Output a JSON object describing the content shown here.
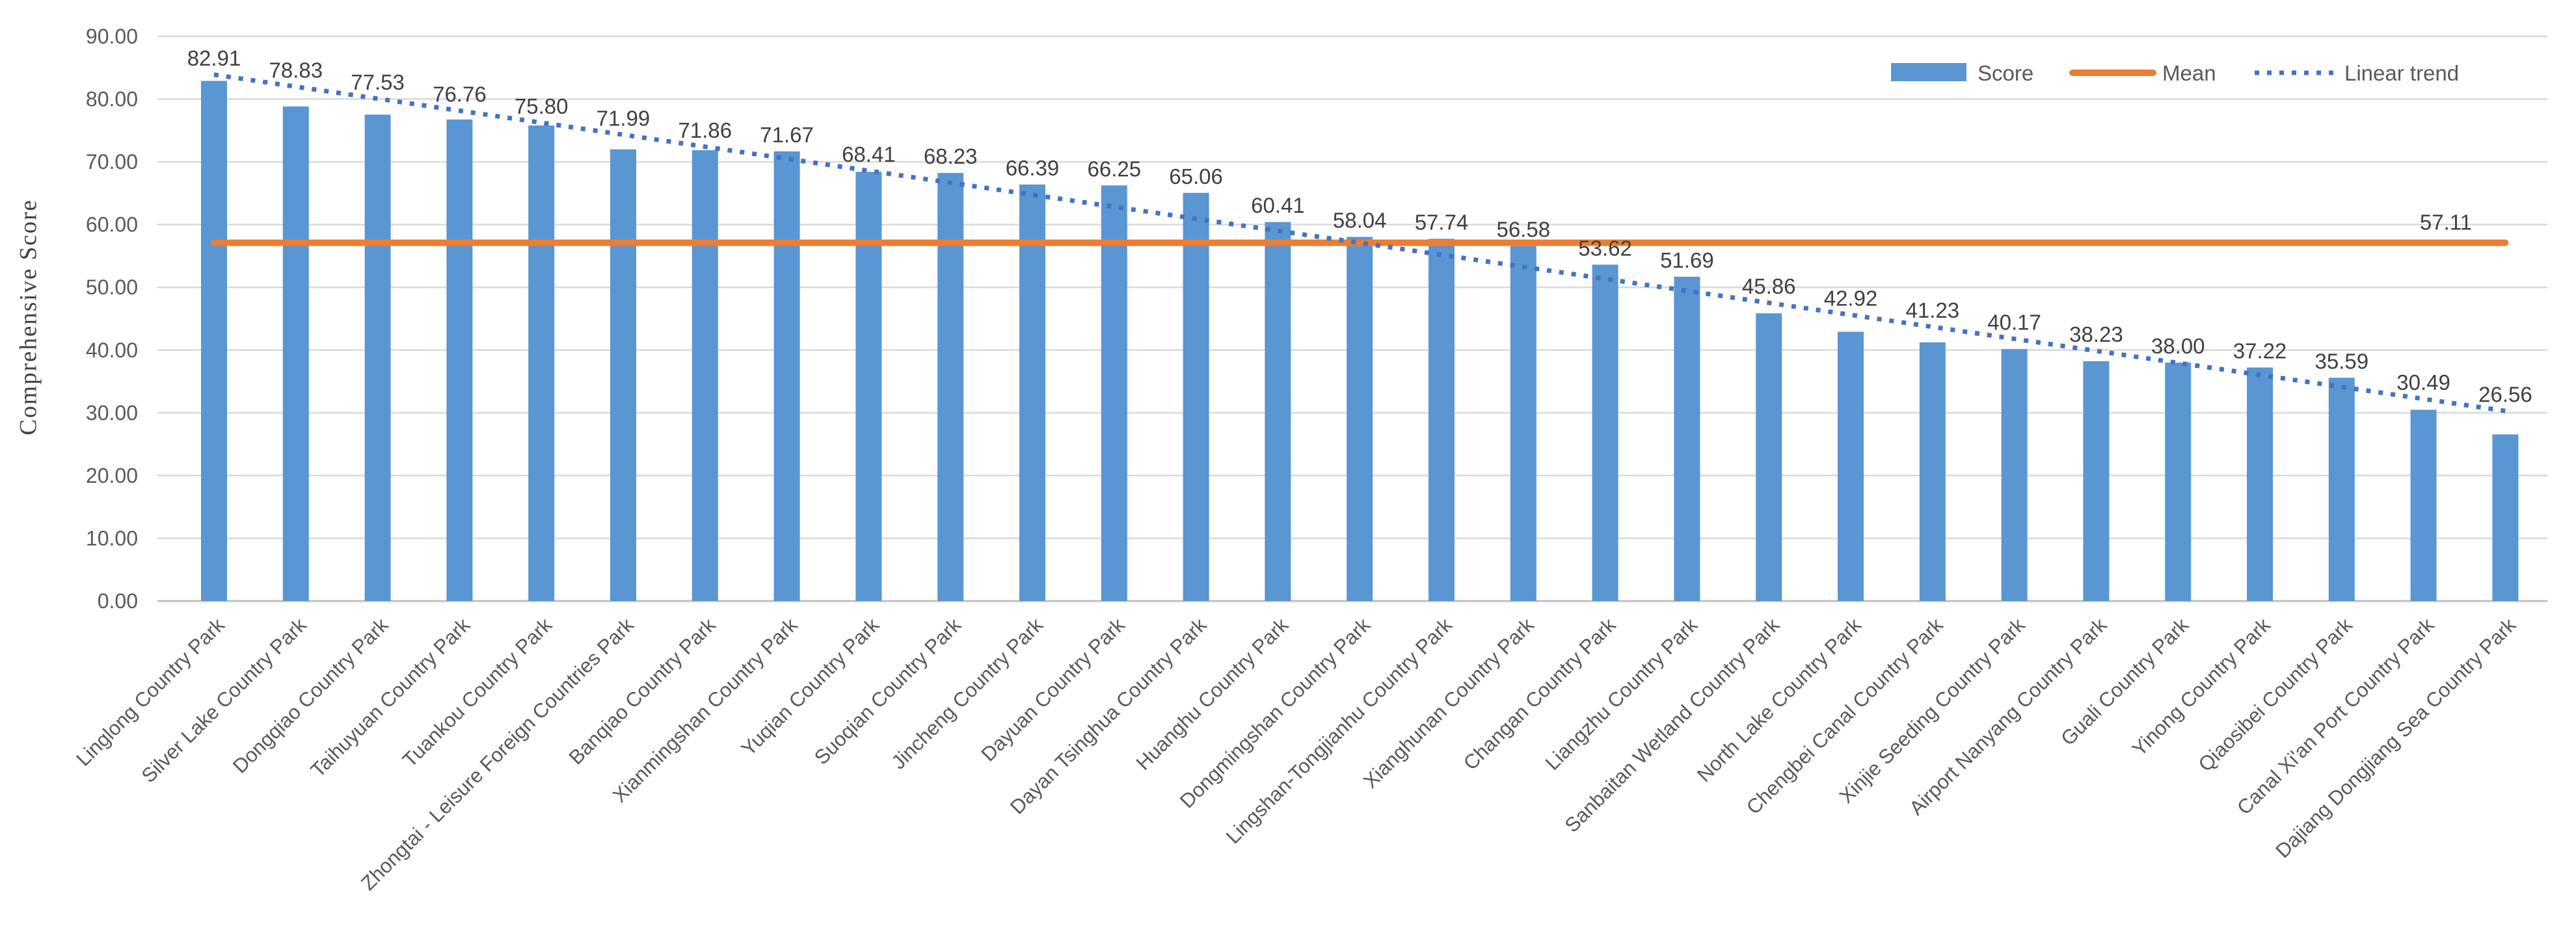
{
  "chart_data": {
    "type": "bar",
    "title": "",
    "xlabel": "",
    "ylabel": "Comprehensive Score",
    "ylim": [
      0,
      90
    ],
    "ytick_step": 10,
    "grid": true,
    "legend_position": "top-right",
    "y_axis": {
      "tick_labels": [
        "0.00",
        "10.00",
        "20.00",
        "30.00",
        "40.00",
        "50.00",
        "60.00",
        "70.00",
        "80.00",
        "90.00"
      ]
    },
    "categories": [
      "Linglong Country Park",
      "Silver Lake Country Park",
      "Dongqiao Country Park",
      "Taihuyuan Country Park",
      "Tuankou Country Park",
      "Zhongtai - Leisure Foreign Countries Park",
      "Banqiao Country Park",
      "Xianmingshan Country Park",
      "Yuqian Country Park",
      "Suoqian Country Park",
      "Jincheng Country Park",
      "Dayuan Country Park",
      "Dayan Tsinghua Country Park",
      "Huanghu Country Park",
      "Dongmingshan Country Park",
      "Lingshan-Tongjianhu Country Park",
      "Xianghunan Country Park",
      "Changan Country Park",
      "Liangzhu Country Park",
      "Sanbaitan Wetland Country Park",
      "North Lake Country Park",
      "Chengbei Canal Country Park",
      "Xinjie Seeding Country Park",
      "Airport Nanyang Country Park",
      "Guali Country Park",
      "Yinong Country Park",
      "Qiaosibei Country Park",
      "Canal Xi'an Port Country Park",
      "Dajiang Dongjiang Sea Country Park"
    ],
    "series": [
      {
        "name": "Score",
        "type": "bar",
        "color": "#5996D2",
        "values": [
          82.91,
          78.83,
          77.53,
          76.76,
          75.8,
          71.99,
          71.86,
          71.67,
          68.41,
          68.23,
          66.39,
          66.25,
          65.06,
          60.41,
          58.04,
          57.74,
          56.58,
          53.62,
          51.69,
          45.86,
          42.92,
          41.23,
          40.17,
          38.23,
          38.0,
          37.22,
          35.59,
          30.49,
          26.56
        ]
      },
      {
        "name": "Mean",
        "type": "line",
        "color": "#ED7D31",
        "value": 57.11,
        "label": "57.11"
      },
      {
        "name": "Linear trend",
        "type": "dotted-line",
        "color": "#4472C4",
        "start_value": 83.9,
        "end_value": 30.3
      }
    ],
    "value_labels": [
      "82.91",
      "78.83",
      "77.53",
      "76.76",
      "75.80",
      "71.99",
      "71.86",
      "71.67",
      "68.41",
      "68.23",
      "66.39",
      "66.25",
      "65.06",
      "60.41",
      "58.04",
      "57.74",
      "56.58",
      "53.62",
      "51.69",
      "45.86",
      "42.92",
      "41.23",
      "40.17",
      "38.23",
      "38.00",
      "37.22",
      "35.59",
      "30.49",
      "26.56"
    ],
    "colors": {
      "bar": "#5996D2",
      "mean_line": "#ED7D31",
      "trend_line": "#4472C4",
      "gridline": "#D9D9D9",
      "axis_line": "#BFBFBF",
      "tick_text": "#595959",
      "category_text": "#595959",
      "value_text": "#404040"
    }
  }
}
